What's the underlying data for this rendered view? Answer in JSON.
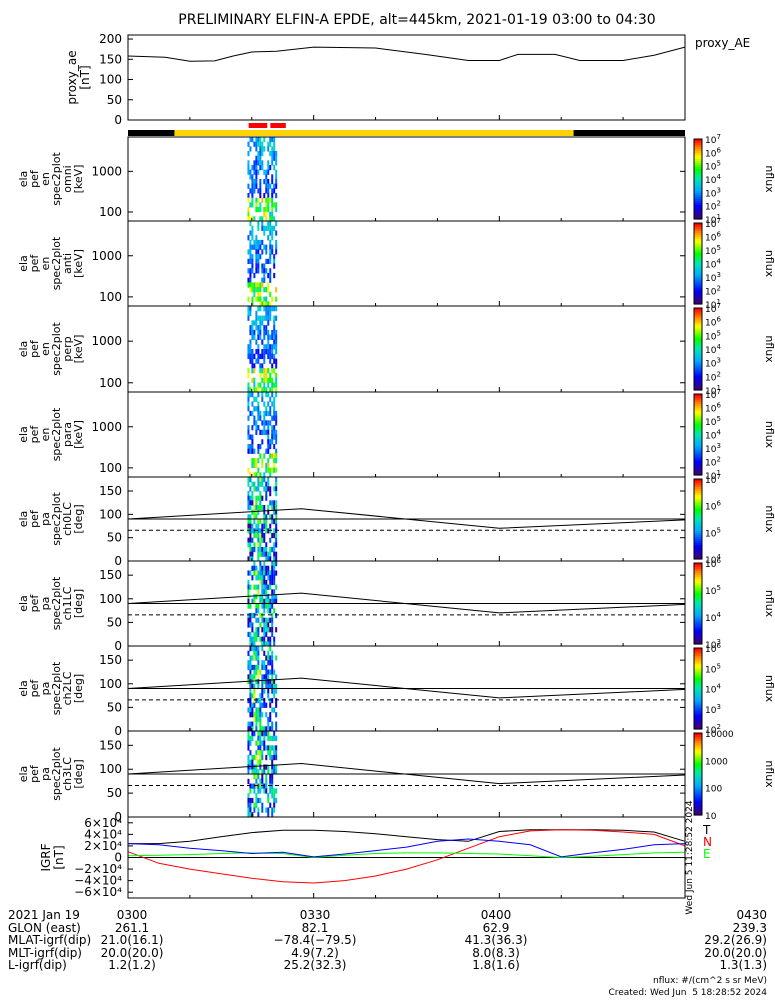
{
  "title": "PRELIMINARY ELFIN-A EPDE, alt=445km, 2021-01-19 03:00 to 04:30",
  "chart_data": [
    {
      "type": "line",
      "id": "proxy_ae",
      "ylabel_lines": [
        "proxy_ae",
        "[nT]"
      ],
      "legend": "proxy_AE",
      "ylim": [
        0,
        210
      ],
      "yticks": [
        0,
        50,
        100,
        150,
        200
      ],
      "x_minutes": [
        0,
        6,
        10,
        14,
        17,
        20,
        24,
        30,
        40,
        48,
        55,
        60,
        63,
        69,
        73,
        80,
        85,
        90
      ],
      "values": [
        158,
        155,
        145,
        146,
        158,
        168,
        170,
        180,
        178,
        162,
        147,
        147,
        162,
        162,
        147,
        147,
        160,
        180
      ],
      "science_zones": [
        [
          19.5,
          22.5
        ],
        [
          23,
          25.5
        ]
      ],
      "coverage_yellow": [
        7.5,
        72
      ]
    },
    {
      "type": "heatmap",
      "id": "en_spec_omni",
      "ylabel_lines": [
        "ela",
        "pef",
        "en",
        "spec2plot",
        "omni",
        "[keV]"
      ],
      "yscale": "log",
      "ylim": [
        60,
        7000
      ],
      "yticks": [
        100,
        1000
      ],
      "colorbar": {
        "label": "nflux",
        "min_exp": 1,
        "max_exp": 7,
        "ticks": [
          "10^1",
          "10^2",
          "10^3",
          "10^4",
          "10^5",
          "10^6",
          "10^7"
        ]
      }
    },
    {
      "type": "heatmap",
      "id": "en_spec_anti",
      "ylabel_lines": [
        "ela",
        "pef",
        "en",
        "spec2plot",
        "anti",
        "[keV]"
      ],
      "yscale": "log",
      "ylim": [
        60,
        7000
      ],
      "yticks": [
        100,
        1000
      ],
      "colorbar": {
        "label": "nflux",
        "min_exp": 1,
        "max_exp": 7,
        "ticks": [
          "10^1",
          "10^2",
          "10^3",
          "10^4",
          "10^5",
          "10^6",
          "10^7"
        ]
      }
    },
    {
      "type": "heatmap",
      "id": "en_spec_perp",
      "ylabel_lines": [
        "ela",
        "pef",
        "en",
        "spec2plot",
        "perp",
        "[keV]"
      ],
      "yscale": "log",
      "ylim": [
        60,
        7000
      ],
      "yticks": [
        100,
        1000
      ],
      "colorbar": {
        "label": "nflux",
        "min_exp": 1,
        "max_exp": 7,
        "ticks": [
          "10^1",
          "10^2",
          "10^3",
          "10^4",
          "10^5",
          "10^6",
          "10^7"
        ]
      }
    },
    {
      "type": "heatmap",
      "id": "en_spec_para",
      "ylabel_lines": [
        "ela",
        "pef",
        "en",
        "spec2plot",
        "para",
        "[keV]"
      ],
      "yscale": "log",
      "ylim": [
        60,
        7000
      ],
      "yticks": [
        100,
        1000
      ],
      "colorbar": {
        "label": "nflux",
        "min_exp": 1,
        "max_exp": 7,
        "ticks": [
          "10^1",
          "10^2",
          "10^3",
          "10^4",
          "10^5",
          "10^6",
          "10^7"
        ]
      }
    },
    {
      "type": "heatmap",
      "id": "pa_spec_ch0",
      "ylabel_lines": [
        "ela",
        "pef",
        "pa",
        "spec2plot",
        "ch0LC",
        "[deg]"
      ],
      "ylim": [
        0,
        180
      ],
      "yticks": [
        0,
        50,
        100,
        150
      ],
      "colorbar": {
        "label": "nflux",
        "min_exp": 3.5,
        "max_exp": 7,
        "ticks": [
          "10^4",
          "10^5",
          "10^6",
          "10^7"
        ]
      }
    },
    {
      "type": "heatmap",
      "id": "pa_spec_ch1",
      "ylabel_lines": [
        "ela",
        "pef",
        "pa",
        "spec2plot",
        "ch1LC",
        "[deg]"
      ],
      "ylim": [
        0,
        180
      ],
      "yticks": [
        0,
        50,
        100,
        150
      ],
      "colorbar": {
        "label": "nflux",
        "min_exp": 3,
        "max_exp": 6,
        "ticks": [
          "10^3",
          "10^4",
          "10^5",
          "10^6"
        ]
      }
    },
    {
      "type": "heatmap",
      "id": "pa_spec_ch2",
      "ylabel_lines": [
        "ela",
        "pef",
        "pa",
        "spec2plot",
        "ch2LC",
        "[deg]"
      ],
      "ylim": [
        0,
        180
      ],
      "yticks": [
        0,
        50,
        100,
        150
      ],
      "colorbar": {
        "label": "nflux",
        "min_exp": 2,
        "max_exp": 6,
        "ticks": [
          "10^2",
          "10^3",
          "10^4",
          "10^5",
          "10^6"
        ]
      }
    },
    {
      "type": "heatmap",
      "id": "pa_spec_ch3",
      "ylabel_lines": [
        "ela",
        "pef",
        "pa",
        "spec2plot",
        "ch3LC",
        "[deg]"
      ],
      "ylim": [
        0,
        180
      ],
      "yticks": [
        0,
        50,
        100,
        150
      ],
      "colorbar": {
        "label": "nflux",
        "min_exp": 1,
        "max_exp": 4.2,
        "tick_labels": [
          "10000",
          "1000",
          "100",
          "10"
        ]
      }
    },
    {
      "type": "line",
      "id": "igrf",
      "ylabel_lines": [
        "IGRF",
        "[nT]"
      ],
      "ylim": [
        -70000,
        70000
      ],
      "ytick_labels": [
        "6×10⁴",
        "4×10⁴",
        "2×10⁴",
        "0",
        "−2×10⁴",
        "−4×10⁴",
        "−6×10⁴"
      ],
      "yticks": [
        60000,
        40000,
        20000,
        0,
        -20000,
        -40000,
        -60000
      ],
      "x_minutes": [
        0,
        5,
        10,
        15,
        20,
        25,
        30,
        35,
        40,
        45,
        50,
        55,
        60,
        65,
        70,
        75,
        80,
        85,
        90
      ],
      "series": [
        {
          "name": "T",
          "color": "#000000",
          "values": [
            24000,
            24000,
            28000,
            36000,
            43000,
            47000,
            47000,
            45000,
            41000,
            36000,
            31000,
            28000,
            45000,
            48000,
            48000,
            48000,
            47000,
            44000,
            28000
          ]
        },
        {
          "name": "N",
          "color": "#ff0000",
          "values": [
            10000,
            -10000,
            -20000,
            -28000,
            -36000,
            -42000,
            -44000,
            -40000,
            -32000,
            -20000,
            -4000,
            16000,
            36000,
            46000,
            48000,
            47000,
            44000,
            40000,
            20000
          ]
        },
        {
          "name": "E",
          "color": "#00ff00",
          "values": [
            3000,
            4000,
            5000,
            7000,
            8000,
            7000,
            0,
            4000,
            7000,
            8000,
            8000,
            7000,
            6000,
            3000,
            0,
            2000,
            5000,
            8000,
            9000
          ]
        },
        {
          "name": "",
          "color": "#0000ff",
          "values": [
            24000,
            22000,
            16000,
            12000,
            7000,
            9000,
            1000,
            6000,
            12000,
            18000,
            28000,
            32000,
            28000,
            22000,
            1000,
            8000,
            14000,
            22000,
            24000
          ]
        }
      ],
      "legend_labels": [
        "T",
        "N",
        "E"
      ],
      "side_note": "Wed Jun  5 11:28:52 2024"
    }
  ],
  "xaxis": {
    "rows": [
      [
        "2021 Jan 19",
        "0300",
        "0330",
        "0400",
        "0430"
      ],
      [
        "GLON (east)",
        "261.1",
        "82.1",
        "62.9",
        "239.3"
      ],
      [
        "MLAT-igrf(dip)",
        "21.0(16.1)",
        "−78.4(−79.5)",
        "41.3(36.3)",
        "29.2(26.9)"
      ],
      [
        "MLT-igrf(dip)",
        "20.0(20.0)",
        "4.9(7.2)",
        "8.0(8.3)",
        "20.0(20.0)"
      ],
      [
        "L-igrf(dip)",
        "1.2(1.2)",
        "25.2(32.3)",
        "1.8(1.6)",
        "1.3(1.3)"
      ]
    ]
  },
  "footer": {
    "units": "nflux: #/(cm^2 s sr MeV)",
    "created": "Created: Wed Jun  5 18:28:52 2024"
  }
}
